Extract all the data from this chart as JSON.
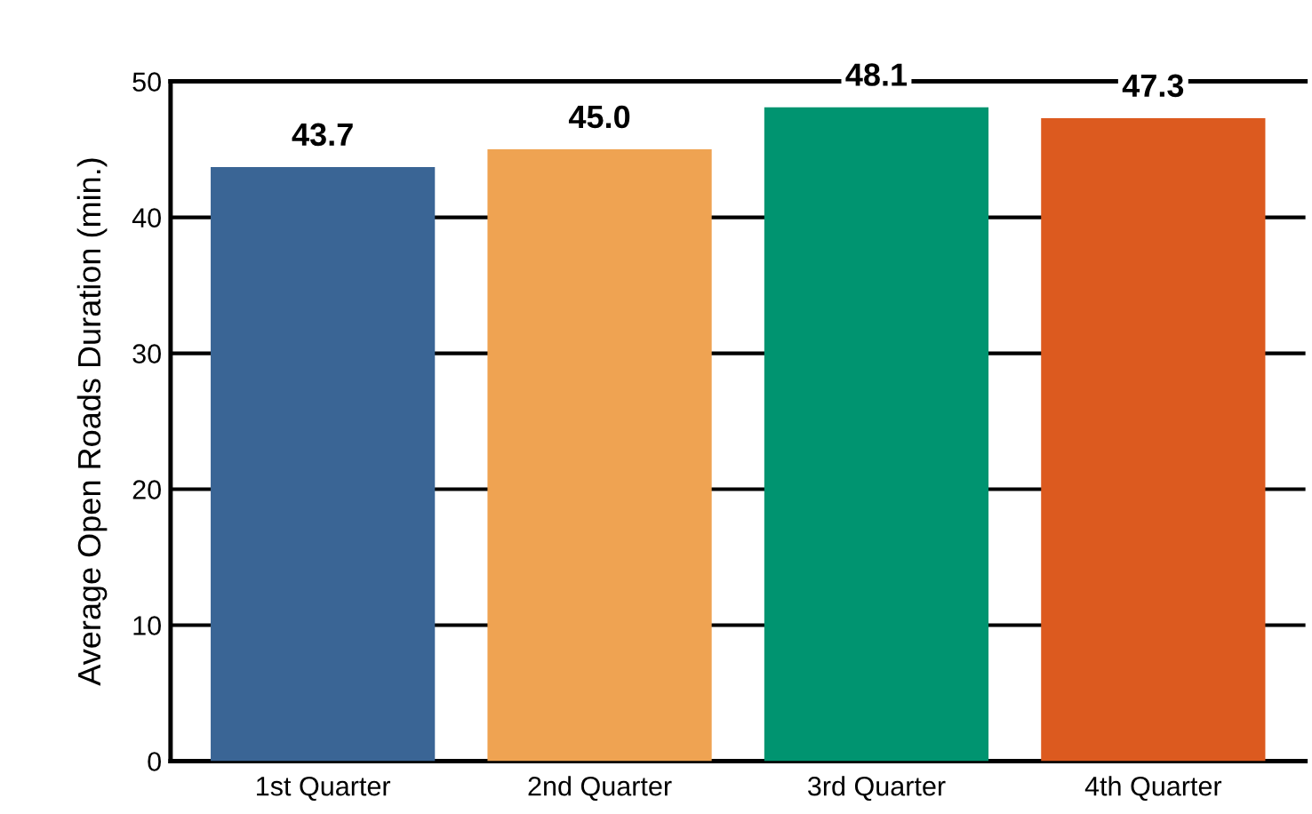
{
  "chart_data": {
    "type": "bar",
    "ylabel": "Average Open Roads Duration (min.)",
    "categories": [
      "1st Quarter",
      "2nd Quarter",
      "3rd Quarter",
      "4th Quarter"
    ],
    "values": [
      43.7,
      45.0,
      48.1,
      47.3
    ],
    "colors": [
      "#3a6595",
      "#efa352",
      "#009470",
      "#dc5a1f"
    ],
    "value_labels": [
      "43.7",
      "45.0",
      "48.1",
      "47.3"
    ],
    "ylim": [
      0,
      50
    ],
    "yticks": [
      0,
      10,
      20,
      30,
      40,
      50
    ],
    "grid": "y",
    "legend": false
  }
}
